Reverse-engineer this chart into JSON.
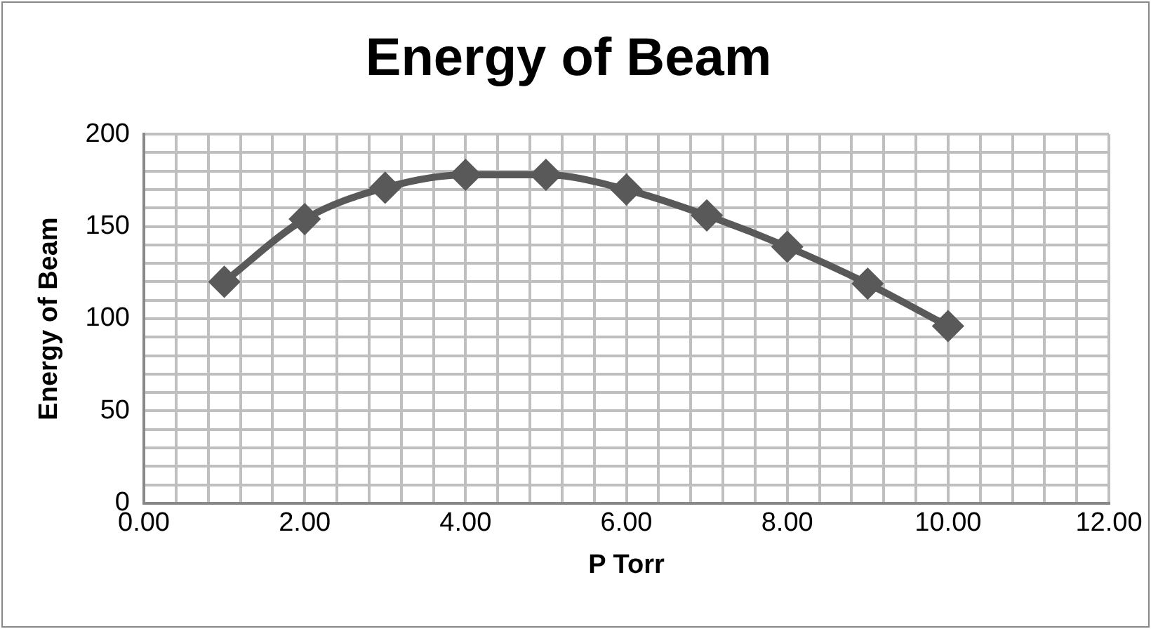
{
  "chart_data": {
    "type": "line",
    "title": "Energy of Beam",
    "xlabel": "P Torr",
    "ylabel": "Energy of Beam",
    "x": [
      1,
      2,
      3,
      4,
      5,
      6,
      7,
      8,
      9,
      10
    ],
    "series": [
      {
        "color": "#595959",
        "values": [
          120,
          154,
          171,
          178,
          178,
          170,
          156,
          139,
          119,
          96
        ]
      }
    ],
    "xlim": [
      0,
      12
    ],
    "xticks": [
      {
        "value": 0,
        "label": "0.00"
      },
      {
        "value": 0.4,
        "label": null
      },
      {
        "value": 0.8,
        "label": null
      },
      {
        "value": 1.2,
        "label": null
      },
      {
        "value": 1.6,
        "label": null
      },
      {
        "value": 2,
        "label": "2.00"
      },
      {
        "value": 2.4,
        "label": null
      },
      {
        "value": 2.8,
        "label": null
      },
      {
        "value": 3.2,
        "label": null
      },
      {
        "value": 3.6,
        "label": null
      },
      {
        "value": 4,
        "label": "4.00"
      },
      {
        "value": 4.4,
        "label": null
      },
      {
        "value": 4.8,
        "label": null
      },
      {
        "value": 5.2,
        "label": null
      },
      {
        "value": 5.6,
        "label": null
      },
      {
        "value": 6,
        "label": "6.00"
      },
      {
        "value": 6.4,
        "label": null
      },
      {
        "value": 6.8,
        "label": null
      },
      {
        "value": 7.2,
        "label": null
      },
      {
        "value": 7.6,
        "label": null
      },
      {
        "value": 8,
        "label": "8.00"
      },
      {
        "value": 8.4,
        "label": null
      },
      {
        "value": 8.8,
        "label": null
      },
      {
        "value": 9.2,
        "label": null
      },
      {
        "value": 9.6,
        "label": null
      },
      {
        "value": 10,
        "label": "10.00"
      },
      {
        "value": 10.4,
        "label": null
      },
      {
        "value": 10.8,
        "label": null
      },
      {
        "value": 11.2,
        "label": null
      },
      {
        "value": 11.6,
        "label": null
      },
      {
        "value": 12,
        "label": "12.00"
      }
    ],
    "ylim": [
      0,
      200
    ],
    "yticks": [
      0,
      {
        "value": 10,
        "label": null
      },
      {
        "value": 20,
        "label": null
      },
      {
        "value": 30,
        "label": null
      },
      {
        "value": 40,
        "label": null
      },
      50,
      {
        "value": 60,
        "label": null
      },
      {
        "value": 70,
        "label": null
      },
      {
        "value": 80,
        "label": null
      },
      {
        "value": 90,
        "label": null
      },
      100,
      {
        "value": 110,
        "label": null
      },
      {
        "value": 120,
        "label": null
      },
      {
        "value": 130,
        "label": null
      },
      {
        "value": 140,
        "label": null
      },
      150,
      {
        "value": 160,
        "label": null
      },
      {
        "value": 170,
        "label": null
      },
      {
        "value": 180,
        "label": null
      },
      {
        "value": 190,
        "label": null
      },
      200
    ],
    "grid": true,
    "legend": false,
    "marker": "diamond",
    "line_style": "solid"
  }
}
